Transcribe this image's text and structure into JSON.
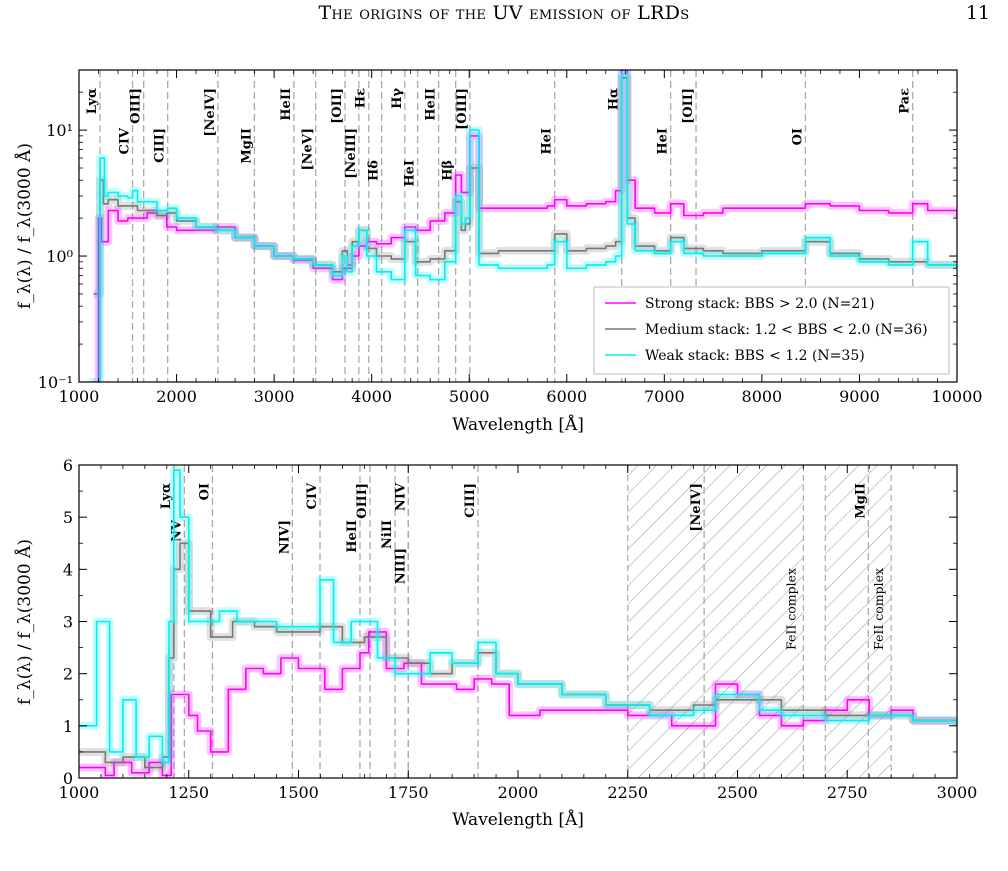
{
  "header": {
    "title": "The origins of the UV emission of LRDs",
    "page_number": "11"
  },
  "colors": {
    "strong": "#ff00ff",
    "medium": "#777777",
    "weak": "#00f0f0",
    "line_marker": "#aaaaaa",
    "frame": "#000000"
  },
  "chart_data": [
    {
      "type": "line",
      "ylabel": "f_λ(λ) / f_λ(3000 Å)",
      "xlabel": "Wavelength [Å]",
      "xlim": [
        1000,
        10000
      ],
      "ylim": [
        0.1,
        30
      ],
      "yscale": "log",
      "xticks": [
        1000,
        2000,
        3000,
        4000,
        5000,
        6000,
        7000,
        8000,
        9000,
        10000
      ],
      "ytick_labels": [
        {
          "value": 0.1,
          "label": "10⁻¹"
        },
        {
          "value": 1,
          "label": "10⁰"
        },
        {
          "value": 10,
          "label": "10¹"
        }
      ],
      "grid": false,
      "legend_position": "lower-right",
      "emission_lines": [
        {
          "label": "Lyα",
          "x": 1216,
          "row": 0
        },
        {
          "label": "CIV",
          "x": 1549,
          "row": 1
        },
        {
          "label": "OIII]",
          "x": 1663,
          "row": 0
        },
        {
          "label": "CIII]",
          "x": 1909,
          "row": 1
        },
        {
          "label": "[NeIV]",
          "x": 2424,
          "row": 0
        },
        {
          "label": "MgII",
          "x": 2798,
          "row": 1
        },
        {
          "label": "HeII",
          "x": 3203,
          "row": 0
        },
        {
          "label": "[NeV]",
          "x": 3426,
          "row": 1
        },
        {
          "label": "[OII]",
          "x": 3727,
          "row": 0
        },
        {
          "label": "[NeIII]",
          "x": 3869,
          "row": 1
        },
        {
          "label": "Hε",
          "x": 3970,
          "row": 0
        },
        {
          "label": "Hδ",
          "x": 4102,
          "row": 2
        },
        {
          "label": "Hγ",
          "x": 4340,
          "row": 0
        },
        {
          "label": "HeI",
          "x": 4471,
          "row": 2
        },
        {
          "label": "HeII",
          "x": 4686,
          "row": 0
        },
        {
          "label": "Hβ",
          "x": 4861,
          "row": 2
        },
        {
          "label": "[OIII]",
          "x": 5007,
          "row": 0
        },
        {
          "label": "HeI",
          "x": 5876,
          "row": 1
        },
        {
          "label": "Hα",
          "x": 6563,
          "row": 0
        },
        {
          "label": "HeI",
          "x": 7065,
          "row": 1
        },
        {
          "label": "[OII]",
          "x": 7325,
          "row": 0
        },
        {
          "label": "OI",
          "x": 8446,
          "row": 1
        },
        {
          "label": "Paε",
          "x": 9546,
          "row": 0
        }
      ],
      "series": [
        {
          "name": "Strong stack: BBS > 2.0 (N=21)",
          "color_key": "strong",
          "x": [
            1150,
            1200,
            1230,
            1300,
            1400,
            1500,
            1600,
            1700,
            1800,
            1900,
            2000,
            2200,
            2400,
            2600,
            2800,
            3000,
            3200,
            3400,
            3600,
            3700,
            3800,
            3869,
            3950,
            4050,
            4200,
            4340,
            4450,
            4600,
            4750,
            4861,
            4920,
            4960,
            5007,
            5100,
            5300,
            5500,
            5800,
            5876,
            6000,
            6200,
            6400,
            6500,
            6563,
            6620,
            6700,
            6900,
            7065,
            7200,
            7400,
            7600,
            8000,
            8446,
            8700,
            9000,
            9300,
            9546,
            9700,
            10000
          ],
          "y": [
            0.1,
            2.0,
            1.3,
            2.3,
            1.9,
            2.0,
            2.0,
            2.2,
            2.1,
            1.7,
            1.6,
            1.6,
            1.7,
            1.4,
            1.2,
            1.0,
            0.93,
            0.8,
            0.65,
            0.8,
            1.0,
            1.2,
            1.3,
            1.25,
            1.4,
            1.7,
            1.6,
            1.9,
            2.2,
            4.4,
            3.2,
            3.2,
            9.0,
            2.4,
            2.4,
            2.4,
            2.5,
            2.8,
            2.5,
            2.6,
            2.7,
            3.3,
            30,
            4.0,
            2.4,
            2.2,
            2.6,
            2.1,
            2.2,
            2.4,
            2.4,
            2.6,
            2.5,
            2.3,
            2.2,
            2.6,
            2.3,
            2.0
          ]
        },
        {
          "name": "Medium stack: 1.2 < BBS < 2.0 (N=36)",
          "color_key": "medium",
          "x": [
            1150,
            1216,
            1250,
            1300,
            1400,
            1500,
            1600,
            1700,
            1800,
            1900,
            2000,
            2200,
            2400,
            2600,
            2800,
            3000,
            3200,
            3400,
            3600,
            3700,
            3750,
            3800,
            3869,
            3950,
            4050,
            4200,
            4340,
            4450,
            4600,
            4750,
            4861,
            4920,
            4960,
            5007,
            5100,
            5300,
            5500,
            5800,
            5876,
            6000,
            6200,
            6400,
            6500,
            6563,
            6620,
            6700,
            6900,
            7065,
            7200,
            7400,
            7600,
            8000,
            8446,
            8700,
            9000,
            9300,
            9546,
            9700,
            10000
          ],
          "y": [
            0.5,
            4.0,
            2.6,
            2.8,
            2.5,
            2.5,
            2.3,
            2.3,
            2.1,
            2.2,
            1.9,
            1.7,
            1.6,
            1.4,
            1.2,
            1.0,
            0.95,
            0.85,
            0.75,
            1.1,
            0.85,
            1.3,
            1.6,
            1.15,
            1.0,
            0.95,
            1.3,
            0.9,
            0.95,
            1.1,
            2.7,
            1.6,
            1.8,
            5.0,
            1.05,
            1.1,
            1.1,
            1.1,
            1.5,
            1.1,
            1.15,
            1.2,
            1.3,
            26,
            2.0,
            1.2,
            1.1,
            1.4,
            1.15,
            1.1,
            1.05,
            1.1,
            1.3,
            1.05,
            0.95,
            0.9,
            0.9,
            0.85,
            0.8
          ]
        },
        {
          "name": "Weak stack: BBS < 1.2 (N=35)",
          "color_key": "weak",
          "x": [
            1100,
            1216,
            1260,
            1300,
            1400,
            1500,
            1549,
            1600,
            1700,
            1800,
            1909,
            2000,
            2200,
            2400,
            2600,
            2800,
            3000,
            3200,
            3400,
            3600,
            3700,
            3750,
            3800,
            3869,
            3950,
            4050,
            4200,
            4340,
            4450,
            4600,
            4750,
            4861,
            4920,
            4960,
            5007,
            5100,
            5300,
            5500,
            5800,
            5876,
            6000,
            6200,
            6400,
            6500,
            6563,
            6620,
            6700,
            6900,
            7065,
            7200,
            7400,
            7600,
            8000,
            8446,
            8700,
            9000,
            9300,
            9546,
            9700,
            10000
          ],
          "y": [
            0.1,
            6.0,
            3.0,
            3.2,
            3.0,
            2.9,
            3.3,
            2.7,
            2.7,
            2.3,
            2.4,
            2.0,
            1.7,
            1.6,
            1.4,
            1.2,
            1.0,
            0.95,
            0.85,
            0.7,
            1.0,
            0.75,
            1.2,
            1.6,
            1.0,
            0.75,
            0.65,
            1.6,
            0.7,
            0.65,
            0.9,
            3.0,
            1.8,
            2.0,
            10,
            0.85,
            0.8,
            0.8,
            0.85,
            1.3,
            0.8,
            0.85,
            0.9,
            1.0,
            28,
            1.8,
            1.1,
            1.05,
            1.3,
            1.05,
            1.0,
            1.0,
            1.05,
            1.4,
            1.0,
            0.9,
            0.85,
            1.3,
            0.85,
            0.8
          ]
        }
      ]
    },
    {
      "type": "line",
      "ylabel": "f_λ(λ) / f_λ(3000 Å)",
      "xlabel": "Wavelength [Å]",
      "xlim": [
        1000,
        3000
      ],
      "ylim": [
        0,
        6
      ],
      "yscale": "linear",
      "xticks": [
        1000,
        1250,
        1500,
        1750,
        2000,
        2250,
        2500,
        2750,
        3000
      ],
      "yticks": [
        0,
        1,
        2,
        3,
        4,
        5,
        6
      ],
      "grid": false,
      "shaded_regions": [
        {
          "x": [
            2250,
            2650
          ],
          "label": "FeII complex"
        },
        {
          "x": [
            2700,
            2850
          ],
          "label": "FeII complex"
        }
      ],
      "emission_lines": [
        {
          "label": "Lyα",
          "x": 1216,
          "row": 0
        },
        {
          "label": "NV",
          "x": 1240,
          "row": 1
        },
        {
          "label": "OI",
          "x": 1304,
          "row": 0
        },
        {
          "label": "NIV]",
          "x": 1486,
          "row": 1
        },
        {
          "label": "CIV",
          "x": 1549,
          "row": 0
        },
        {
          "label": "HeII",
          "x": 1640,
          "row": 1
        },
        {
          "label": "OIII]",
          "x": 1663,
          "row": 0
        },
        {
          "label": "NiII",
          "x": 1720,
          "row": 1
        },
        {
          "label": "NIV",
          "x": 1750,
          "row": 0
        },
        {
          "label": "NIII]",
          "x": 1750,
          "row": 2
        },
        {
          "label": "CIII]",
          "x": 1909,
          "row": 0
        },
        {
          "label": "[NeIV]",
          "x": 2424,
          "row": 0
        },
        {
          "label": "MgII",
          "x": 2798,
          "row": 0
        }
      ],
      "series": [
        {
          "name": "Strong stack: BBS > 2.0 (N=21)",
          "color_key": "strong",
          "x": [
            1000,
            1060,
            1080,
            1120,
            1160,
            1190,
            1210,
            1220,
            1250,
            1270,
            1300,
            1340,
            1380,
            1420,
            1460,
            1500,
            1530,
            1560,
            1600,
            1640,
            1660,
            1700,
            1740,
            1780,
            1820,
            1860,
            1900,
            1940,
            1980,
            2050,
            2150,
            2250,
            2350,
            2450,
            2500,
            2550,
            2600,
            2650,
            2700,
            2750,
            2800,
            2850,
            2900,
            2950,
            3000
          ],
          "y": [
            0.2,
            0.05,
            0.3,
            0.1,
            0.3,
            0.05,
            1.6,
            1.6,
            1.2,
            0.9,
            0.5,
            1.7,
            2.1,
            2.0,
            2.3,
            2.1,
            2.1,
            1.7,
            2.1,
            2.4,
            2.8,
            2.1,
            2.2,
            1.8,
            1.8,
            1.7,
            1.9,
            1.8,
            1.2,
            1.3,
            1.3,
            1.2,
            1.0,
            1.8,
            1.6,
            1.2,
            1.0,
            1.1,
            1.3,
            1.5,
            1.2,
            1.3,
            1.1,
            1.1,
            1.0
          ]
        },
        {
          "name": "Medium stack: 1.2 < BBS < 2.0 (N=36)",
          "color_key": "medium",
          "x": [
            1000,
            1060,
            1100,
            1150,
            1190,
            1205,
            1216,
            1230,
            1250,
            1300,
            1350,
            1400,
            1450,
            1500,
            1549,
            1600,
            1650,
            1700,
            1750,
            1800,
            1850,
            1909,
            1950,
            2000,
            2100,
            2200,
            2300,
            2400,
            2450,
            2500,
            2600,
            2700,
            2800,
            2900,
            3000
          ],
          "y": [
            0.5,
            0.3,
            0.4,
            0.2,
            0.4,
            2.3,
            4.0,
            4.5,
            3.2,
            2.7,
            3.0,
            2.9,
            2.8,
            2.8,
            2.9,
            2.6,
            2.7,
            2.3,
            2.2,
            2.0,
            2.2,
            2.4,
            2.0,
            1.8,
            1.6,
            1.4,
            1.3,
            1.4,
            1.5,
            1.5,
            1.3,
            1.2,
            1.2,
            1.1,
            1.0
          ]
        },
        {
          "name": "Weak stack: BBS < 1.2 (N=35)",
          "color_key": "weak",
          "x": [
            1000,
            1040,
            1070,
            1100,
            1130,
            1160,
            1190,
            1205,
            1216,
            1230,
            1250,
            1280,
            1320,
            1360,
            1400,
            1450,
            1500,
            1549,
            1580,
            1620,
            1680,
            1720,
            1760,
            1800,
            1850,
            1909,
            1950,
            2000,
            2100,
            2200,
            2300,
            2400,
            2450,
            2500,
            2550,
            2600,
            2700,
            2800,
            2900,
            3000
          ],
          "y": [
            1.0,
            3.0,
            0.5,
            1.5,
            0.4,
            0.8,
            0.3,
            3.0,
            5.9,
            5.0,
            3.0,
            3.0,
            3.2,
            3.0,
            3.0,
            2.9,
            2.9,
            3.8,
            2.6,
            3.0,
            2.3,
            2.0,
            2.0,
            2.4,
            2.2,
            2.6,
            2.0,
            1.8,
            1.6,
            1.4,
            1.2,
            1.3,
            1.6,
            1.6,
            1.3,
            1.2,
            1.1,
            1.2,
            1.1,
            1.0
          ]
        }
      ]
    }
  ]
}
